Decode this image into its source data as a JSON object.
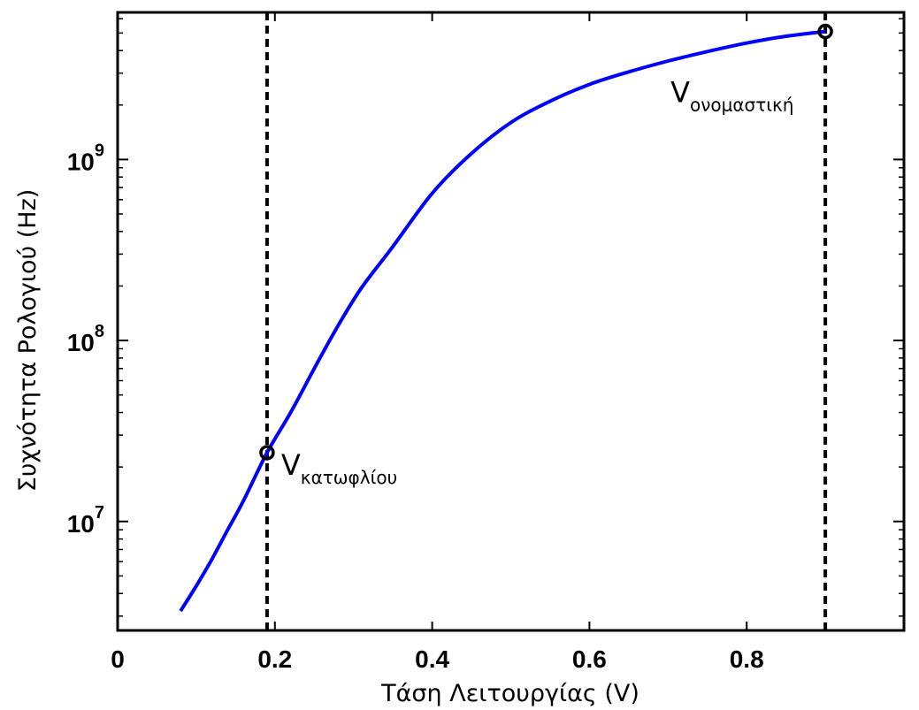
{
  "chart_data": {
    "type": "line",
    "xlabel": "Τάση Λειτουργίας (V)",
    "ylabel": "Συχνότητα Ρολογιού (Hz)",
    "xlim": [
      0,
      1
    ],
    "ylim": [
      2500000,
      6500000000
    ],
    "yscale": "log",
    "grid": false,
    "x_ticks": [
      0,
      0.2,
      0.4,
      0.6,
      0.8
    ],
    "x_tick_labels": [
      "0",
      "0.2",
      "0.4",
      "0.6",
      "0.8"
    ],
    "y_ticks": [
      10000000,
      100000000,
      1000000000
    ],
    "y_tick_labels": [
      {
        "base": "10",
        "exp": "7"
      },
      {
        "base": "10",
        "exp": "8"
      },
      {
        "base": "10",
        "exp": "9"
      }
    ],
    "series": [
      {
        "color": "#0000ff",
        "x": [
          0.08,
          0.1,
          0.12,
          0.14,
          0.16,
          0.19,
          0.22,
          0.25,
          0.28,
          0.31,
          0.35,
          0.4,
          0.45,
          0.5,
          0.55,
          0.6,
          0.65,
          0.7,
          0.75,
          0.8,
          0.85,
          0.9
        ],
        "y": [
          3200000,
          4400000,
          6200000,
          9000000,
          13000000,
          24000000,
          40000000,
          70000000,
          120000000,
          195000000,
          330000000,
          650000000,
          1080000000,
          1600000000,
          2100000000,
          2600000000,
          3050000000,
          3500000000,
          3950000000,
          4400000000,
          4800000000,
          5100000000
        ]
      }
    ],
    "vlines": [
      {
        "x": 0.19,
        "style": "dashed",
        "color": "#000000"
      },
      {
        "x": 0.9,
        "style": "dashed",
        "color": "#000000"
      }
    ],
    "markers": [
      {
        "x": 0.19,
        "y": 24000000
      },
      {
        "x": 0.9,
        "y": 5100000000
      }
    ],
    "annotations": [
      {
        "main": "V",
        "sub": "κατωφλίου",
        "x": 0.19,
        "y": 24000000
      },
      {
        "main": "V",
        "sub": "ονομαστική",
        "x": 0.9,
        "y": 5100000000
      }
    ]
  }
}
